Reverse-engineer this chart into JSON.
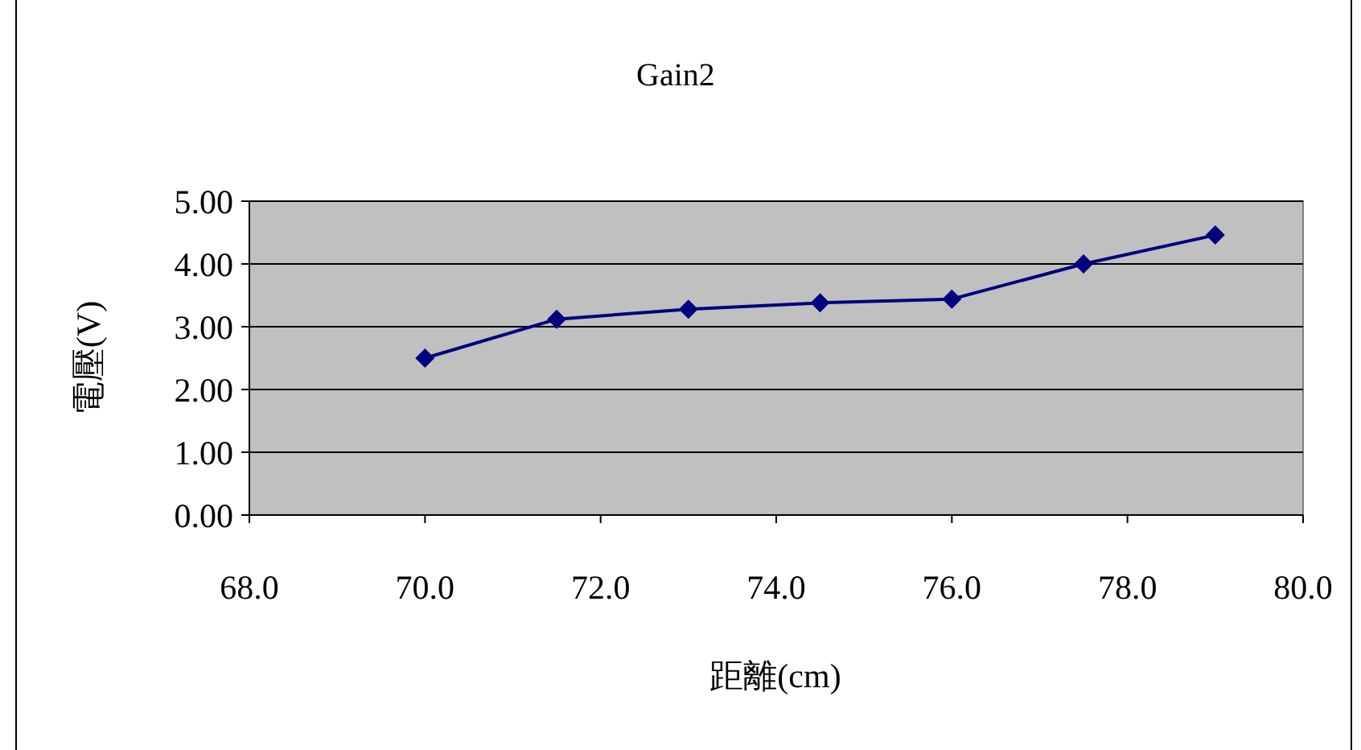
{
  "chart_data": {
    "type": "line",
    "title": "Gain2",
    "xlabel": "距離(cm)",
    "ylabel": "電壓(V)",
    "x": [
      70.0,
      71.5,
      73.0,
      74.5,
      76.0,
      77.5,
      79.0
    ],
    "series": [
      {
        "color": "#000080",
        "values": [
          2.5,
          3.12,
          3.28,
          3.38,
          3.44,
          4.0,
          4.46
        ]
      }
    ],
    "xlim": [
      68,
      80
    ],
    "xticks": [
      {
        "value": 68,
        "label": "68.0"
      },
      {
        "value": 70,
        "label": "70.0"
      },
      {
        "value": 72,
        "label": "72.0"
      },
      {
        "value": 74,
        "label": "74.0"
      },
      {
        "value": 76,
        "label": "76.0"
      },
      {
        "value": 78,
        "label": "78.0"
      },
      {
        "value": 80,
        "label": "80.0"
      }
    ],
    "ylim": [
      0,
      5
    ],
    "yticks": [
      {
        "value": 0,
        "label": "0.00"
      },
      {
        "value": 1,
        "label": "1.00"
      },
      {
        "value": 2,
        "label": "2.00"
      },
      {
        "value": 3,
        "label": "3.00"
      },
      {
        "value": 4,
        "label": "4.00"
      },
      {
        "value": 5,
        "label": "5.00"
      }
    ],
    "grid": "y",
    "marker": "diamond",
    "line_style": "solid"
  }
}
